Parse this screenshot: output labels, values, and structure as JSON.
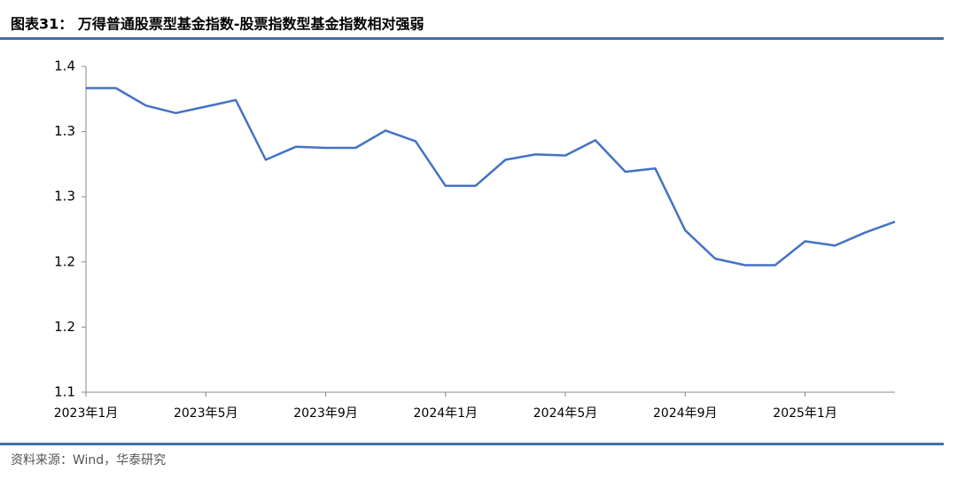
{
  "chart_data": {
    "type": "line",
    "title": "图表31：  万得普通股票型基金指数-股票指数型基金指数相对强弱",
    "source": "资料来源：Wind，华泰研究",
    "categories": [
      "2023年1月",
      null,
      null,
      null,
      "2023年5月",
      null,
      null,
      null,
      "2023年9月",
      null,
      null,
      null,
      "2024年1月",
      null,
      null,
      null,
      "2024年5月",
      null,
      null,
      null,
      "2024年9月",
      null,
      null,
      null,
      "2025年1月",
      null,
      null,
      null
    ],
    "series": [
      {
        "color": "#4472c4",
        "values": [
          1.38,
          1.38,
          1.364,
          1.357,
          1.363,
          1.369,
          1.314,
          1.326,
          1.325,
          1.325,
          1.341,
          1.331,
          1.29,
          1.29,
          1.314,
          1.319,
          1.318,
          1.332,
          1.303,
          1.306,
          1.249,
          1.223,
          1.217,
          1.217,
          1.239,
          1.235,
          1.247,
          1.257
        ]
      }
    ],
    "ylim": [
      1.1,
      1.4
    ],
    "yticks": [
      {
        "value": 1.1,
        "label": "1.1"
      },
      {
        "value": 1.16,
        "label": "1.2"
      },
      {
        "value": 1.22,
        "label": "1.2"
      },
      {
        "value": 1.28,
        "label": "1.3"
      },
      {
        "value": 1.34,
        "label": "1.3"
      },
      {
        "value": 1.4,
        "label": "1.4"
      }
    ],
    "grid": false
  }
}
